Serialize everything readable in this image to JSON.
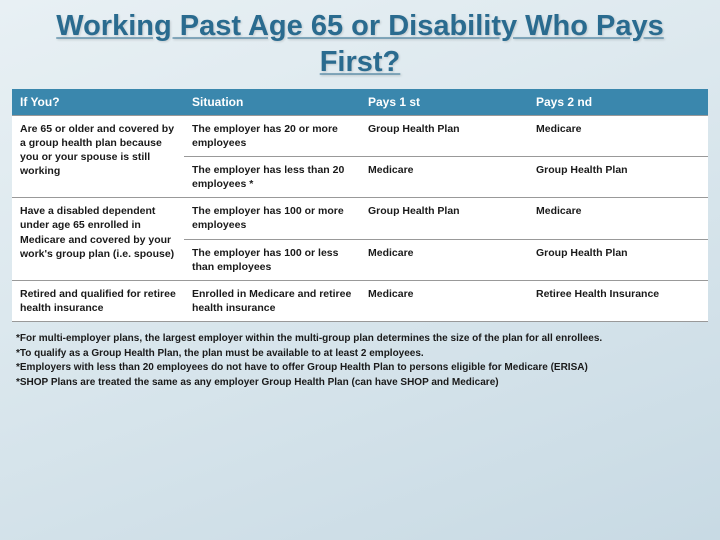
{
  "title": "Working Past Age 65 or Disability Who Pays First?",
  "headers": {
    "c1": "If  You?",
    "c2": "Situation",
    "c3": "Pays 1 st",
    "c4": "Pays 2 nd"
  },
  "groups": [
    {
      "ifyou": "Are 65 or older and covered by a group health plan because you or your spouse is still working",
      "rows": [
        {
          "situation": "The employer has 20 or more employees",
          "p1": "Group Health Plan",
          "p2": "Medicare"
        },
        {
          "situation": "The employer has less than 20 employees *",
          "p1": "Medicare",
          "p2": "Group Health Plan"
        }
      ]
    },
    {
      "ifyou": "Have a disabled dependent under age 65 enrolled in Medicare and covered by your work's group plan (i.e. spouse)",
      "rows": [
        {
          "situation": "The employer has 100 or more employees",
          "p1": "Group Health Plan",
          "p2": "Medicare"
        },
        {
          "situation": "The employer has 100 or less than employees",
          "p1": "Medicare",
          "p2": "Group Health Plan"
        }
      ]
    },
    {
      "ifyou": "Retired and qualified for retiree health insurance",
      "rows": [
        {
          "situation": "Enrolled in Medicare and retiree health insurance",
          "p1": "Medicare",
          "p2": "Retiree Health Insurance"
        }
      ]
    }
  ],
  "footnotes": [
    "*For multi-employer plans, the largest employer within the multi-group plan determines the size of the plan for all enrollees.",
    "*To qualify as a Group Health Plan, the plan must be available to at least 2 employees.",
    "*Employers with less than 20 employees do not have to offer Group Health Plan to persons eligible for Medicare (ERISA)",
    "*SHOP Plans are treated the same as any employer Group Health Plan (can have SHOP and Medicare)"
  ],
  "colors": {
    "title": "#2a6b8f",
    "header_bg": "#3a87ad",
    "border": "#999999",
    "bg_grad_start": "#e8f0f4",
    "bg_grad_end": "#c8dae4"
  }
}
